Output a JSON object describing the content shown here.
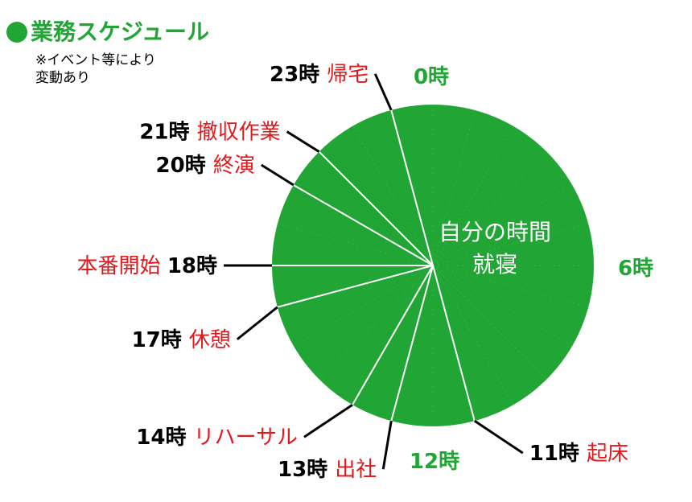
{
  "title": "業務スケジュール",
  "note_line1": "※イベント等により",
  "note_line2": "変動あり",
  "center_label_line1": "自分の時間",
  "center_label_line2": "就寝",
  "colors": {
    "pie": "#21a535",
    "event": "#e0191d",
    "time": "#000000",
    "white": "#ffffff"
  },
  "chart_data": {
    "type": "pie",
    "title": "業務スケジュール",
    "units": "hours (24h clock)",
    "events": [
      {
        "hour": 11,
        "time": "11時",
        "label": "起床"
      },
      {
        "hour": 13,
        "time": "13時",
        "label": "出社"
      },
      {
        "hour": 14,
        "time": "14時",
        "label": "リハーサル"
      },
      {
        "hour": 17,
        "time": "17時",
        "label": "休憩"
      },
      {
        "hour": 18,
        "time": "18時",
        "label": "本番開始"
      },
      {
        "hour": 20,
        "time": "20時",
        "label": "終演"
      },
      {
        "hour": 21,
        "time": "21時",
        "label": "撤収作業"
      },
      {
        "hour": 23,
        "time": "23時",
        "label": "帰宅"
      }
    ],
    "ticks": [
      {
        "hour": 0,
        "label": "0時"
      },
      {
        "hour": 6,
        "label": "6時"
      },
      {
        "hour": 12,
        "label": "12時"
      }
    ],
    "segments": [
      {
        "start": 23,
        "end": 11,
        "label": "自分の時間 就寝"
      }
    ]
  }
}
